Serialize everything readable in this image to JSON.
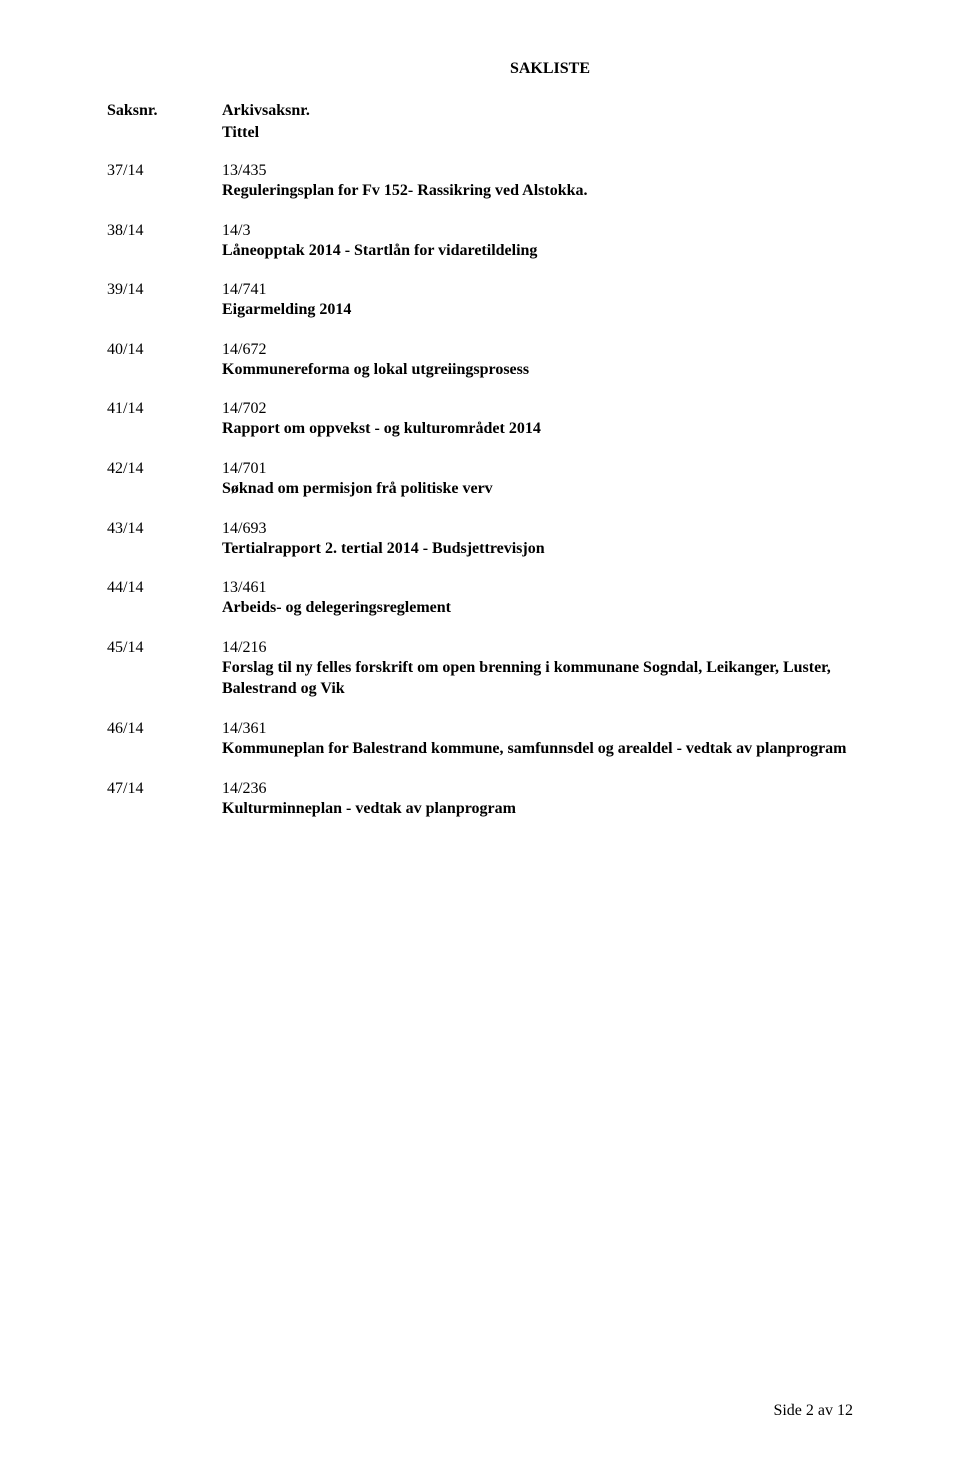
{
  "sakliste_title": "SAKLISTE",
  "header": {
    "col1": "Saksnr.",
    "col2": "Arkivsaksnr.",
    "tittel": "Tittel"
  },
  "entries": [
    {
      "saksnr": "37/14",
      "arkiv": "13/435",
      "title": "Reguleringsplan for Fv 152- Rassikring ved Alstokka."
    },
    {
      "saksnr": "38/14",
      "arkiv": "14/3",
      "title": "Låneopptak 2014 - Startlån for vidaretildeling"
    },
    {
      "saksnr": "39/14",
      "arkiv": "14/741",
      "title": "Eigarmelding 2014"
    },
    {
      "saksnr": "40/14",
      "arkiv": "14/672",
      "title": "Kommunereforma og lokal utgreiingsprosess"
    },
    {
      "saksnr": "41/14",
      "arkiv": "14/702",
      "title": "Rapport om oppvekst -  og kulturområdet 2014"
    },
    {
      "saksnr": "42/14",
      "arkiv": "14/701",
      "title": "Søknad om permisjon frå politiske verv"
    },
    {
      "saksnr": "43/14",
      "arkiv": "14/693",
      "title": "Tertialrapport 2. tertial 2014 - Budsjettrevisjon"
    },
    {
      "saksnr": "44/14",
      "arkiv": "13/461",
      "title": "Arbeids- og delegeringsreglement"
    },
    {
      "saksnr": "45/14",
      "arkiv": "14/216",
      "title": "Forslag til ny felles forskrift om open brenning i kommunane Sogndal, Leikanger, Luster, Balestrand og Vik"
    },
    {
      "saksnr": "46/14",
      "arkiv": "14/361",
      "title": "Kommuneplan for Balestrand kommune, samfunnsdel og arealdel - vedtak av planprogram"
    },
    {
      "saksnr": "47/14",
      "arkiv": "14/236",
      "title": "Kulturminneplan - vedtak av planprogram"
    }
  ],
  "footer": "Side 2 av 12"
}
